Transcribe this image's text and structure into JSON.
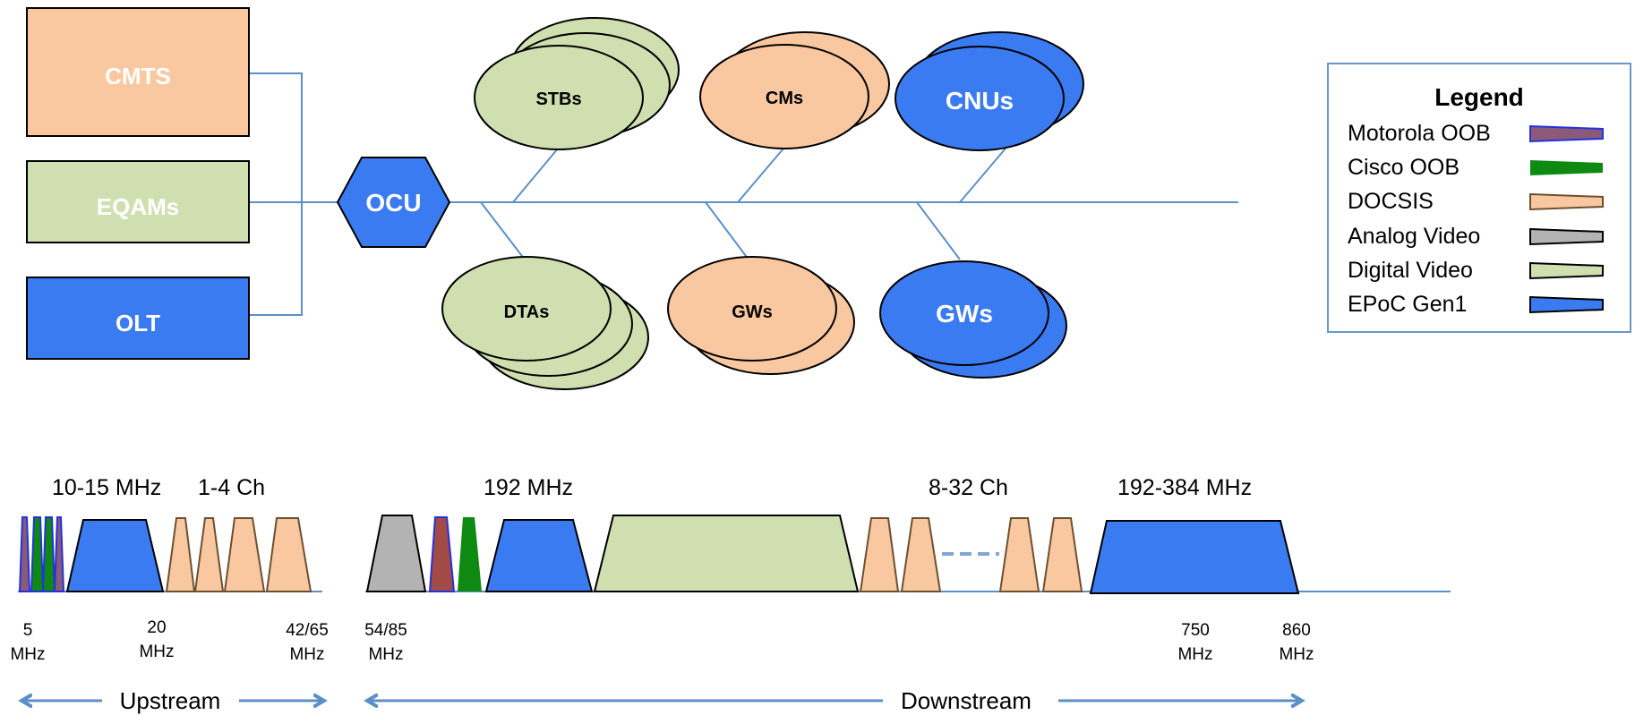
{
  "colors": {
    "docsis": "#FAC8A0",
    "video": "#D0DFAF",
    "epoc": "#3B7BF2",
    "line": "#5B8FC7",
    "motorola": "#A24A45",
    "cisco": "#0E8A12",
    "analog": "#B3B3B3"
  },
  "sources": {
    "cmts": "CMTS",
    "eqams": "EQAMs",
    "olt": "OLT"
  },
  "ocu": "OCU",
  "devices": {
    "stbs": "STBs",
    "cms": "CMs",
    "cnus": "CNUs",
    "dtas": "DTAs",
    "gws_docsis": "GWs",
    "gws_epoc": "GWs"
  },
  "legend": {
    "title": "Legend",
    "items": [
      {
        "label": "Motorola OOB",
        "kind": "motorola"
      },
      {
        "label": "Cisco OOB",
        "kind": "cisco"
      },
      {
        "label": "DOCSIS",
        "kind": "docsis"
      },
      {
        "label": "Analog Video",
        "kind": "analog"
      },
      {
        "label": "Digital Video",
        "kind": "video"
      },
      {
        "label": "EPoC Gen1",
        "kind": "epoc"
      }
    ]
  },
  "spectrum": {
    "labels": {
      "upstream_width": "10-15 MHz",
      "upstream_channels": "1-4 Ch",
      "downstream_width": "192 MHz",
      "downstream_channels": "8-32 Ch",
      "downstream_epoc_width": "192-384 MHz"
    },
    "frequencies": [
      {
        "value": "5",
        "unit": "MHz"
      },
      {
        "value": "20",
        "unit": "MHz"
      },
      {
        "value": "42/65",
        "unit": "MHz"
      },
      {
        "value": "54/85",
        "unit": "MHz"
      },
      {
        "value": "750",
        "unit": "MHz"
      },
      {
        "value": "860",
        "unit": "MHz"
      }
    ],
    "upstream": "Upstream",
    "downstream": "Downstream"
  }
}
